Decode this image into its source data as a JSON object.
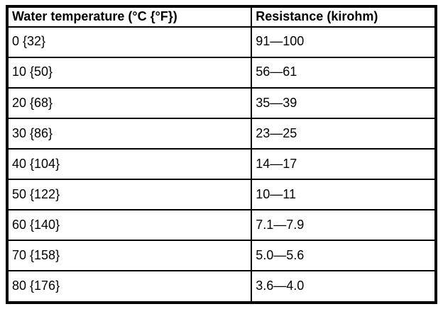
{
  "table": {
    "columns": [
      "Water temperature (°C {°F})",
      "Resistance (kirohm)"
    ],
    "rows": [
      [
        "0 {32}",
        "91—100"
      ],
      [
        "10 {50}",
        "56—61"
      ],
      [
        "20 {68}",
        "35—39"
      ],
      [
        "30 {86}",
        "23—25"
      ],
      [
        "40 {104}",
        "14—17"
      ],
      [
        "50 {122}",
        "10—11"
      ],
      [
        "60 {140}",
        "7.1—7.9"
      ],
      [
        "70 {158}",
        "5.0—5.6"
      ],
      [
        "80 {176}",
        "3.6—4.0"
      ]
    ]
  },
  "colors": {
    "border": "#000000",
    "background": "#ffffff",
    "text": "#000000"
  }
}
